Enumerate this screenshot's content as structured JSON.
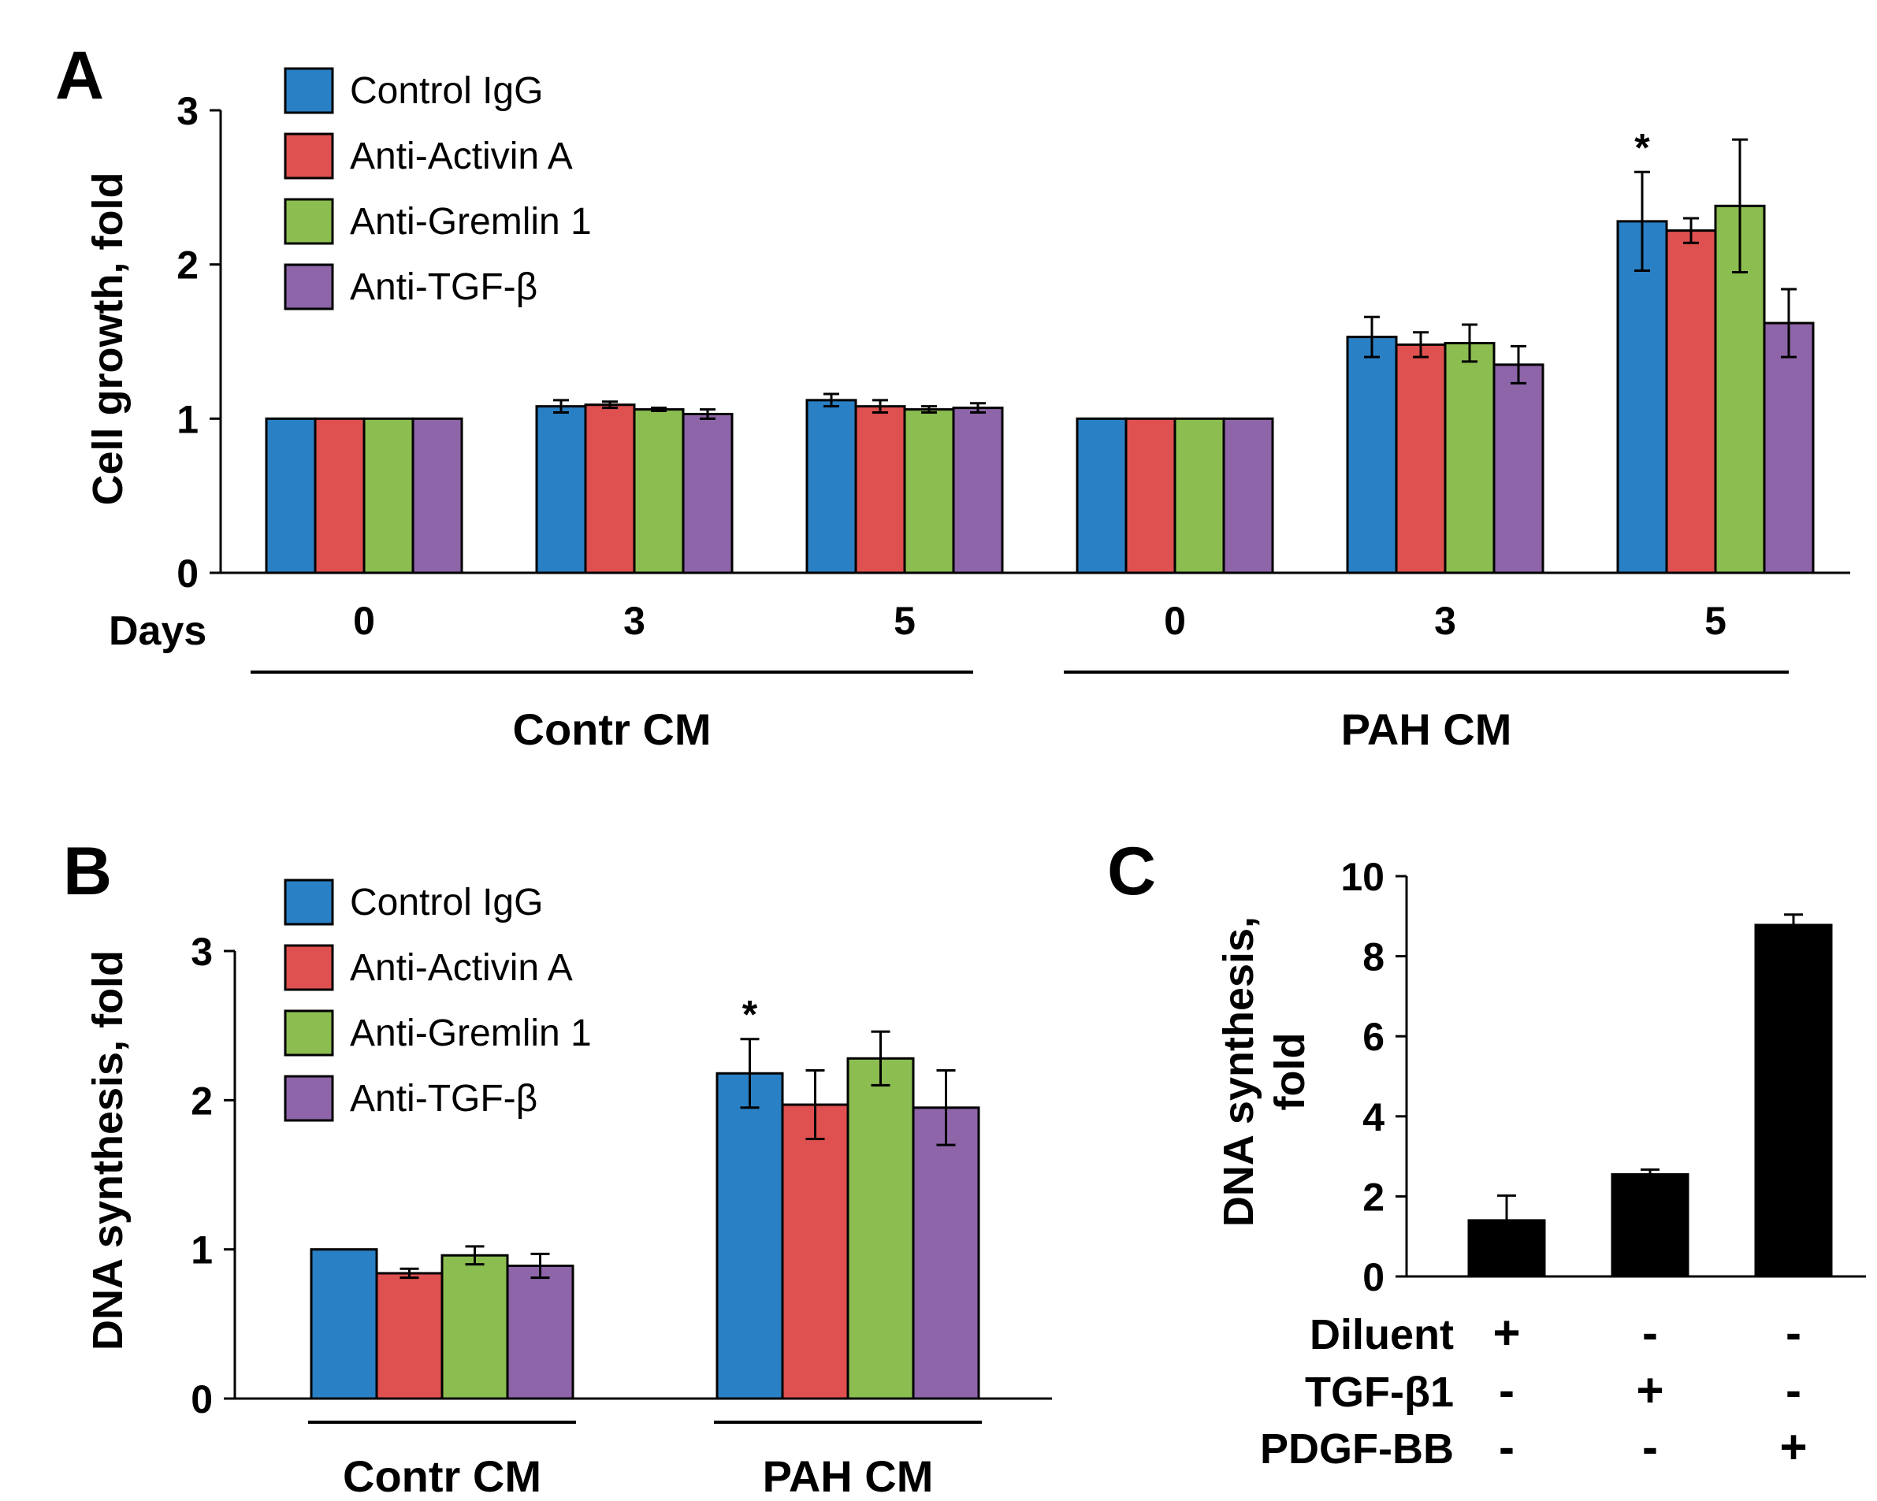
{
  "colors": {
    "control_igg": "#2a80c4",
    "anti_activin_a": "#df5050",
    "anti_gremlin_1": "#8cbd51",
    "anti_tgf_beta": "#8d65a8",
    "black": "#000000"
  },
  "chart_data": [
    {
      "panel": "A",
      "type": "bar",
      "ylabel": "Cell growth, fold",
      "ylim": [
        0,
        3
      ],
      "yticks": [
        "0",
        "1",
        "2",
        "3"
      ],
      "days_label": "Days",
      "categories": [
        "0",
        "3",
        "5",
        "0",
        "3",
        "5"
      ],
      "groups": [
        {
          "label": "Contr CM",
          "span": [
            0,
            2
          ]
        },
        {
          "label": "PAH CM",
          "span": [
            3,
            5
          ]
        }
      ],
      "series": [
        {
          "name": "Control IgG",
          "color": "#2a80c4",
          "values": [
            1.0,
            1.08,
            1.12,
            1.0,
            1.53,
            2.28
          ],
          "errors": [
            0,
            0.04,
            0.04,
            0,
            0.13,
            0.32
          ]
        },
        {
          "name": "Anti-Activin A",
          "color": "#df5050",
          "values": [
            1.0,
            1.09,
            1.08,
            1.0,
            1.48,
            2.22
          ],
          "errors": [
            0,
            0.02,
            0.04,
            0,
            0.08,
            0.08
          ]
        },
        {
          "name": "Anti-Gremlin 1",
          "color": "#8cbd51",
          "values": [
            1.0,
            1.06,
            1.06,
            1.0,
            1.49,
            2.38
          ],
          "errors": [
            0,
            0.01,
            0.02,
            0,
            0.12,
            0.43
          ]
        },
        {
          "name": "Anti-TGF-β",
          "color": "#8d65a8",
          "values": [
            1.0,
            1.03,
            1.07,
            1.0,
            1.35,
            1.62
          ],
          "errors": [
            0,
            0.03,
            0.03,
            0,
            0.12,
            0.22
          ]
        }
      ],
      "annotations": [
        {
          "text": "*",
          "category_index": 5,
          "series_index": 0
        }
      ]
    },
    {
      "panel": "B",
      "type": "bar",
      "ylabel": "DNA synthesis, fold",
      "ylim": [
        0,
        3
      ],
      "yticks": [
        "0",
        "1",
        "2",
        "3"
      ],
      "categories": [
        "Contr CM",
        "PAH CM"
      ],
      "series": [
        {
          "name": "Control IgG",
          "color": "#2a80c4",
          "values": [
            1.0,
            2.18
          ],
          "errors": [
            0,
            0.23
          ]
        },
        {
          "name": "Anti-Activin A",
          "color": "#df5050",
          "values": [
            0.84,
            1.97
          ],
          "errors": [
            0.03,
            0.23
          ]
        },
        {
          "name": "Anti-Gremlin 1",
          "color": "#8cbd51",
          "values": [
            0.96,
            2.28
          ],
          "errors": [
            0.06,
            0.18
          ]
        },
        {
          "name": "Anti-TGF-β",
          "color": "#8d65a8",
          "values": [
            0.89,
            1.95
          ],
          "errors": [
            0.08,
            0.25
          ]
        }
      ],
      "annotations": [
        {
          "text": "*",
          "category_index": 1,
          "series_index": 0
        }
      ]
    },
    {
      "panel": "C",
      "type": "bar",
      "ylabel_lines": [
        "DNA synthesis,",
        "fold"
      ],
      "ylim": [
        0,
        10
      ],
      "yticks": [
        "0",
        "2",
        "4",
        "6",
        "8",
        "10"
      ],
      "values": [
        1.4,
        2.55,
        8.78
      ],
      "errors": [
        0.62,
        0.12,
        0.26
      ],
      "color": "#000000",
      "treatments": [
        {
          "label": "Diluent",
          "signs": [
            "+",
            "-",
            "-"
          ]
        },
        {
          "label": "TGF-β1",
          "signs": [
            "-",
            "+",
            "-"
          ]
        },
        {
          "label": "PDGF-BB",
          "signs": [
            "-",
            "-",
            "+"
          ]
        }
      ]
    }
  ]
}
